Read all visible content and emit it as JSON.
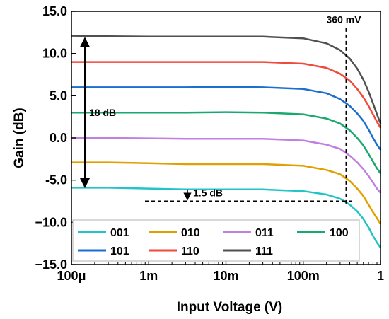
{
  "chart_data": {
    "type": "line",
    "xlabel": "Input Voltage (V)",
    "ylabel": "Gain (dB)",
    "x_scale": "log",
    "xlim": [
      0.0001,
      1
    ],
    "ylim": [
      -15,
      15
    ],
    "x_ticks": [
      {
        "value": 0.0001,
        "label": "100μ"
      },
      {
        "value": 0.001,
        "label": "1m"
      },
      {
        "value": 0.01,
        "label": "10m"
      },
      {
        "value": 0.1,
        "label": "100m"
      },
      {
        "value": 1,
        "label": "1"
      }
    ],
    "y_ticks": [
      {
        "value": 15,
        "label": "15.0"
      },
      {
        "value": 10,
        "label": "10.0"
      },
      {
        "value": 5,
        "label": "5.0"
      },
      {
        "value": 0,
        "label": "0.0"
      },
      {
        "value": -5,
        "label": "-5.0"
      },
      {
        "value": -10,
        "label": "−10.0"
      },
      {
        "value": -15,
        "label": "−15.0"
      }
    ],
    "grid": false,
    "legend_position": "bottom",
    "x": [
      0.0001,
      0.0003,
      0.001,
      0.003,
      0.01,
      0.03,
      0.1,
      0.2,
      0.3,
      0.4,
      0.5,
      0.6,
      0.7,
      0.8,
      0.9,
      1.0
    ],
    "series": [
      {
        "name": "001",
        "color": "#22c4c8",
        "values": [
          -5.9,
          -5.9,
          -6.0,
          -6.1,
          -6.1,
          -6.1,
          -6.3,
          -6.7,
          -7.2,
          -7.9,
          -8.7,
          -9.6,
          -10.6,
          -11.6,
          -12.4,
          -13.0
        ]
      },
      {
        "name": "010",
        "color": "#e0a000",
        "values": [
          -2.9,
          -2.9,
          -3.0,
          -3.1,
          -3.1,
          -3.1,
          -3.3,
          -3.8,
          -4.3,
          -5.1,
          -6.0,
          -6.9,
          -7.9,
          -8.8,
          -9.5,
          -10.2
        ]
      },
      {
        "name": "011",
        "color": "#c080e0",
        "values": [
          0.0,
          0.0,
          -0.05,
          -0.1,
          -0.1,
          -0.1,
          -0.3,
          -0.8,
          -1.3,
          -2.1,
          -2.9,
          -3.7,
          -4.5,
          -5.3,
          -6.0,
          -6.5
        ]
      },
      {
        "name": "100",
        "color": "#1aa870",
        "values": [
          3.0,
          3.0,
          3.0,
          3.0,
          3.05,
          3.0,
          2.8,
          2.3,
          1.7,
          0.9,
          0.0,
          -0.9,
          -1.9,
          -2.8,
          -3.6,
          -4.2
        ]
      },
      {
        "name": "101",
        "color": "#1a6fd0",
        "values": [
          6.0,
          6.0,
          6.0,
          6.0,
          6.05,
          6.0,
          5.8,
          5.3,
          4.6,
          3.8,
          2.9,
          2.0,
          1.0,
          0.0,
          -0.8,
          -1.4
        ]
      },
      {
        "name": "110",
        "color": "#f04a3c",
        "values": [
          9.0,
          9.0,
          9.0,
          9.0,
          9.0,
          9.0,
          8.8,
          8.3,
          7.6,
          6.8,
          5.8,
          4.8,
          3.8,
          2.8,
          1.9,
          1.2
        ]
      },
      {
        "name": "111",
        "color": "#505050",
        "values": [
          12.1,
          12.05,
          12.0,
          12.0,
          12.0,
          12.0,
          11.8,
          11.2,
          10.4,
          9.4,
          8.2,
          6.9,
          5.5,
          4.1,
          2.8,
          1.7
        ]
      }
    ],
    "annotations": {
      "vline_label": "360 mV",
      "vline_x": 0.36,
      "span_label": "18 dB",
      "span_from": -6,
      "span_to": 12,
      "drop_label": "1.5 dB",
      "hline_y": -7.5
    }
  }
}
